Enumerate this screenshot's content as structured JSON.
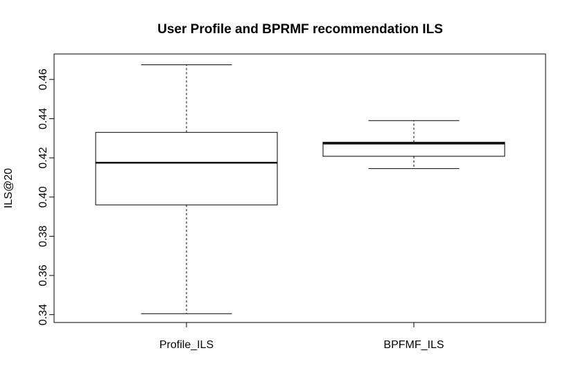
{
  "chart_data": {
    "type": "boxplot",
    "title": "User Profile and BPRMF recommendation ILS",
    "xlabel": "",
    "ylabel": "ILS@20",
    "ylim": [
      0.336,
      0.473
    ],
    "yticks": [
      0.34,
      0.36,
      0.38,
      0.4,
      0.42,
      0.44,
      0.46
    ],
    "ytick_labels": [
      "0.34",
      "0.36",
      "0.38",
      "0.40",
      "0.42",
      "0.44",
      "0.46"
    ],
    "categories": [
      "Profile_ILS",
      "BPFMF_ILS"
    ],
    "boxes": [
      {
        "category": "Profile_ILS",
        "min": 0.3405,
        "q1": 0.396,
        "median": 0.4175,
        "q3": 0.433,
        "max": 0.4675
      },
      {
        "category": "BPFMF_ILS",
        "min": 0.4145,
        "q1": 0.4208,
        "median": 0.4273,
        "q3": 0.428,
        "max": 0.439
      }
    ],
    "grid": false,
    "legend": "none"
  }
}
